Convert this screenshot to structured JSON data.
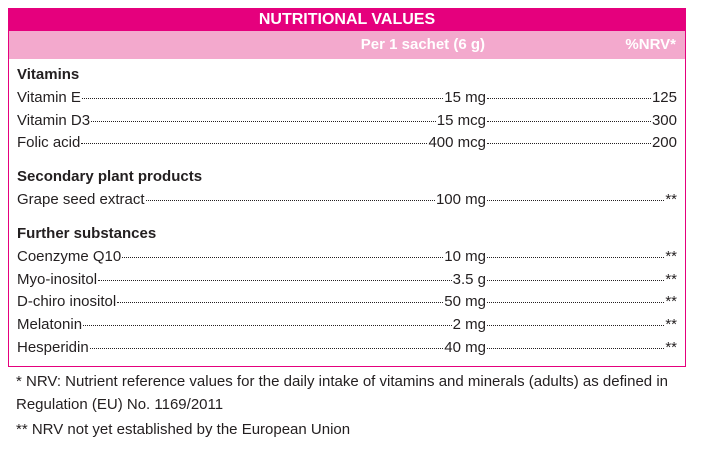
{
  "header": {
    "title": "NUTRITIONAL VALUES",
    "amount_heading": "Per 1 sachet (6 g)",
    "nrv_heading": "%NRV*"
  },
  "sections": [
    {
      "heading": "Vitamins",
      "rows": [
        {
          "name": "Vitamin E",
          "amount": "15 mg",
          "nrv": "125"
        },
        {
          "name": "Vitamin D3",
          "amount": "15 mcg",
          "nrv": "300"
        },
        {
          "name": "Folic acid",
          "amount": "400 mcg",
          "nrv": "200"
        }
      ]
    },
    {
      "heading": "Secondary plant products",
      "rows": [
        {
          "name": "Grape seed extract",
          "amount": "100 mg",
          "nrv": "**"
        }
      ]
    },
    {
      "heading": "Further substances",
      "rows": [
        {
          "name": "Coenzyme Q10",
          "amount": "10 mg",
          "nrv": "**"
        },
        {
          "name": "Myo-inositol",
          "amount": "3.5 g",
          "nrv": "**"
        },
        {
          "name": "D-chiro inositol",
          "amount": "50 mg",
          "nrv": "**"
        },
        {
          "name": "Melatonin",
          "amount": "2 mg",
          "nrv": "**"
        },
        {
          "name": "Hesperidin",
          "amount": "40 mg",
          "nrv": "**"
        }
      ]
    }
  ],
  "footnotes": [
    "*  NRV: Nutrient reference values for the daily intake of vitamins and minerals (adults) as defined in Regulation (EU) No. 1169/2011",
    "** NRV not yet established by the European Union"
  ]
}
